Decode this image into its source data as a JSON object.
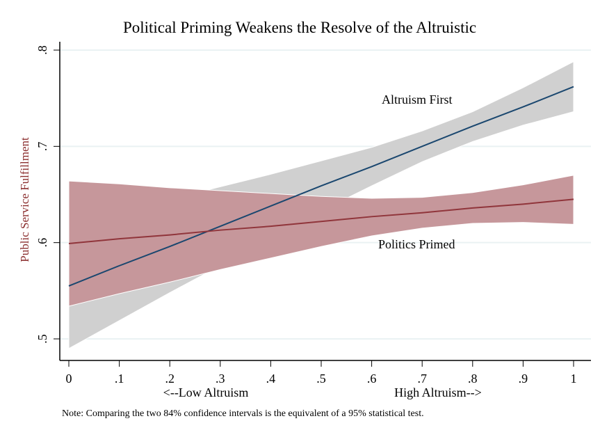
{
  "chart_data": {
    "type": "line",
    "title": "Political Priming Weakens the Resolve of the Altruistic",
    "ylabel": "Public Service Fulfillment",
    "xlabel_left": "<--Low Altruism",
    "xlabel_right": "High Altruism-->",
    "note": "Note: Comparing the two 84% confidence intervals is the equivalent of a 95% statistical test.",
    "xlim": [
      0,
      1
    ],
    "ylim": [
      0.5,
      0.8
    ],
    "grid": true,
    "xticks": [
      0,
      0.1,
      0.2,
      0.3,
      0.4,
      0.5,
      0.6,
      0.7,
      0.8,
      0.9,
      1
    ],
    "xtick_labels": [
      "0",
      ".1",
      ".2",
      ".3",
      ".4",
      ".5",
      ".6",
      ".7",
      ".8",
      ".9",
      "1"
    ],
    "yticks": [
      0.5,
      0.6,
      0.7,
      0.8
    ],
    "ytick_labels": [
      ".5",
      ".6",
      ".7",
      ".8"
    ],
    "x": [
      0,
      0.1,
      0.2,
      0.3,
      0.4,
      0.5,
      0.6,
      0.7,
      0.8,
      0.9,
      1
    ],
    "series": [
      {
        "name": "Altruism First",
        "line_color": "#1a476f",
        "band_color": "#d0d0d0",
        "values": [
          0.555,
          0.576,
          0.596,
          0.617,
          0.638,
          0.659,
          0.679,
          0.7,
          0.721,
          0.741,
          0.762
        ],
        "upper": [
          0.62,
          0.633,
          0.645,
          0.658,
          0.671,
          0.685,
          0.699,
          0.716,
          0.736,
          0.761,
          0.788
        ],
        "lower": [
          0.49,
          0.519,
          0.548,
          0.576,
          0.605,
          0.633,
          0.659,
          0.684,
          0.705,
          0.722,
          0.736
        ]
      },
      {
        "name": "Politics Primed",
        "line_color": "#90353b",
        "band_color": "#c6979b",
        "values": [
          0.599,
          0.604,
          0.608,
          0.613,
          0.617,
          0.622,
          0.627,
          0.631,
          0.636,
          0.64,
          0.645
        ],
        "upper": [
          0.664,
          0.661,
          0.657,
          0.654,
          0.651,
          0.648,
          0.646,
          0.647,
          0.652,
          0.66,
          0.67
        ],
        "lower": [
          0.534,
          0.547,
          0.559,
          0.572,
          0.584,
          0.596,
          0.607,
          0.615,
          0.62,
          0.621,
          0.619
        ]
      }
    ]
  }
}
